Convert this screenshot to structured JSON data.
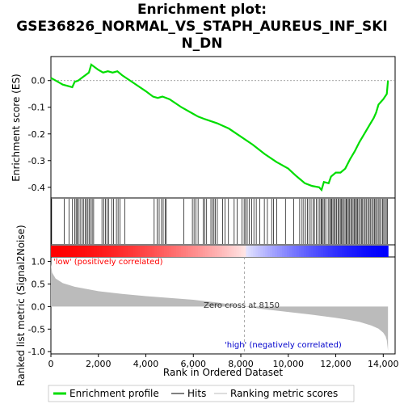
{
  "chart_data": {
    "type": "line",
    "title_lines": [
      "Enrichment plot:",
      "GSE36826_NORMAL_VS_STAPH_AUREUS_INF_SKI",
      "N_DN"
    ],
    "ylabel_es": "Enrichment score (ES)",
    "ylabel_metric": "Ranked list metric (Signal2Noise)",
    "xlabel": "Rank in Ordered Dataset",
    "xlim": [
      0,
      14500
    ],
    "es_ylim": [
      -0.44,
      0.09
    ],
    "metric_ylim": [
      -1.05,
      1.1
    ],
    "x_ticks": [
      "0",
      "2,000",
      "4,000",
      "6,000",
      "8,000",
      "10,000",
      "12,000",
      "14,000"
    ],
    "x_tick_values": [
      0,
      2000,
      4000,
      6000,
      8000,
      10000,
      12000,
      14000
    ],
    "es_ticks": [
      "0.0",
      "-0.1",
      "-0.2",
      "-0.3",
      "-0.4"
    ],
    "es_tick_values": [
      0.0,
      -0.1,
      -0.2,
      -0.3,
      -0.4
    ],
    "metric_ticks": [
      "1.0",
      "0.5",
      "0.0",
      "-0.5",
      "-1.0"
    ],
    "metric_tick_values": [
      1.0,
      0.5,
      0.0,
      -0.5,
      -1.0
    ],
    "series": [
      {
        "name": "Enrichment profile",
        "color": "#00dd00",
        "x": [
          0,
          200,
          500,
          700,
          900,
          1000,
          1150,
          1300,
          1450,
          1600,
          1700,
          1850,
          2000,
          2200,
          2400,
          2600,
          2800,
          3000,
          3500,
          4000,
          4300,
          4500,
          4700,
          5000,
          5500,
          6000,
          6200,
          6500,
          7000,
          7500,
          8000,
          8500,
          9000,
          9500,
          10000,
          10300,
          10500,
          10700,
          11000,
          11300,
          11400,
          11500,
          11700,
          11800,
          12000,
          12200,
          12400,
          12600,
          12800,
          13000,
          13200,
          13400,
          13600,
          13700,
          13800,
          14000,
          14150,
          14200
        ],
        "y": [
          0.01,
          0.0,
          -0.015,
          -0.02,
          -0.025,
          -0.005,
          0.0,
          0.01,
          0.02,
          0.03,
          0.06,
          0.05,
          0.04,
          0.03,
          0.035,
          0.03,
          0.035,
          0.02,
          -0.01,
          -0.04,
          -0.06,
          -0.065,
          -0.06,
          -0.07,
          -0.1,
          -0.125,
          -0.135,
          -0.145,
          -0.16,
          -0.18,
          -0.21,
          -0.24,
          -0.275,
          -0.305,
          -0.33,
          -0.355,
          -0.37,
          -0.385,
          -0.395,
          -0.4,
          -0.41,
          -0.38,
          -0.385,
          -0.36,
          -0.345,
          -0.345,
          -0.33,
          -0.295,
          -0.265,
          -0.23,
          -0.2,
          -0.17,
          -0.14,
          -0.12,
          -0.09,
          -0.07,
          -0.05,
          0.0
        ]
      }
    ],
    "hits_positions": [
      30,
      560,
      760,
      910,
      1000,
      1060,
      1110,
      1160,
      1230,
      1310,
      1370,
      1440,
      1500,
      1560,
      1620,
      1690,
      1740,
      1800,
      2150,
      2230,
      2300,
      2370,
      2440,
      2560,
      2640,
      2760,
      2830,
      2910,
      3120,
      4350,
      4480,
      4560,
      4660,
      4730,
      4810,
      4860,
      5600,
      5960,
      6030,
      6110,
      6200,
      6420,
      6490,
      6560,
      6740,
      6810,
      6870,
      6930,
      7010,
      7230,
      7330,
      7480,
      7720,
      7850,
      8050,
      8140,
      8200,
      8270,
      8350,
      8460,
      8550,
      8650,
      8800,
      8990,
      9120,
      9300,
      9380,
      9510,
      9880,
      10230,
      10480,
      10580,
      10650,
      10730,
      10810,
      10880,
      10960,
      11040,
      11100,
      11180,
      11260,
      11330,
      11380,
      11420,
      11470,
      11530,
      11580,
      11680,
      11740,
      11790,
      11830,
      11880,
      11930,
      11980,
      12030,
      12090,
      12140,
      12190,
      12230,
      12280,
      12330,
      12390,
      12440,
      12480,
      12530,
      12570,
      12630,
      12680,
      12730,
      12780,
      12830,
      12870,
      12920,
      12970,
      13030,
      13080,
      13130,
      13190,
      13240,
      13300,
      13360,
      13410,
      13470,
      13520,
      13580,
      13630,
      13680,
      13730,
      13790,
      13850,
      13910,
      13970,
      14020,
      14080,
      14130,
      14180
    ],
    "metric_profile": {
      "x": [
        0,
        50,
        200,
        500,
        1000,
        2000,
        3000,
        4000,
        5000,
        6000,
        7000,
        8150,
        9000,
        10000,
        11000,
        12000,
        12500,
        13000,
        13500,
        13800,
        14000,
        14100,
        14150,
        14200
      ],
      "y": [
        0.95,
        0.75,
        0.62,
        0.52,
        0.44,
        0.34,
        0.28,
        0.23,
        0.19,
        0.15,
        0.09,
        0.0,
        -0.06,
        -0.12,
        -0.18,
        -0.25,
        -0.29,
        -0.34,
        -0.42,
        -0.49,
        -0.58,
        -0.66,
        -0.75,
        -0.98
      ]
    },
    "zero_cross_rank": 8150,
    "zero_cross_label": "Zero cross at 8150",
    "low_label": "'low' (positively correlated)",
    "high_label": "'high' (negatively correlated)",
    "legend": [
      {
        "name": "Enrichment profile",
        "color": "#00dd00"
      },
      {
        "name": "Hits",
        "color": "#000000"
      },
      {
        "name": "Ranking metric scores",
        "color": "#bbbbbb"
      }
    ],
    "low_label_color": "#ff0000",
    "high_label_color": "#0000cc",
    "grid": false,
    "legend_position": "bottom"
  }
}
